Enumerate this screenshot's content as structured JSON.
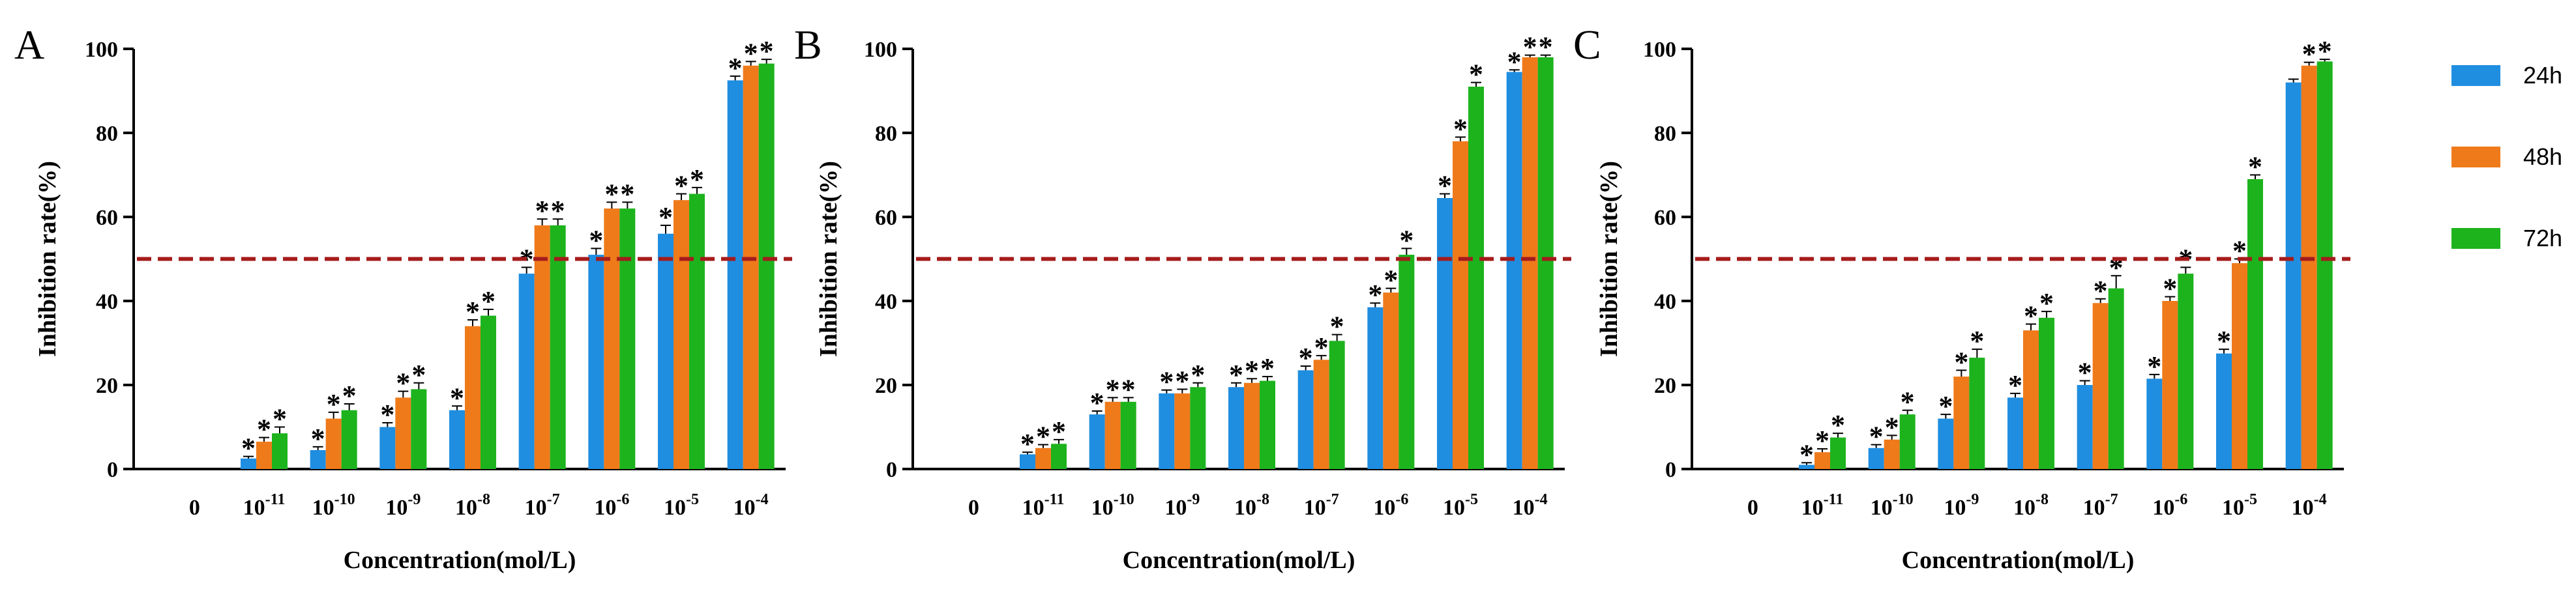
{
  "colors": {
    "24h": "#1f8ee0",
    "48h": "#ef7a1a",
    "72h": "#1db31d",
    "threshold": "#a51c1c",
    "axis": "#000000"
  },
  "legend": [
    {
      "label": "24h",
      "color": "#1f8ee0"
    },
    {
      "label": "48h",
      "color": "#ef7a1a"
    },
    {
      "label": "72h",
      "color": "#1db31d"
    }
  ],
  "chart_data": [
    {
      "type": "bar",
      "panel": "A",
      "xlabel": "Concentration(mol/L)",
      "ylabel": "Inhibition rate(%)",
      "ylim": [
        0,
        100
      ],
      "yticks": [
        "0",
        "20",
        "40",
        "60",
        "80",
        "100"
      ],
      "threshold": 50,
      "categories": [
        {
          "base": "0",
          "exp": ""
        },
        {
          "base": "10",
          "exp": "-11"
        },
        {
          "base": "10",
          "exp": "-10"
        },
        {
          "base": "10",
          "exp": "-9"
        },
        {
          "base": "10",
          "exp": "-8"
        },
        {
          "base": "10",
          "exp": "-7"
        },
        {
          "base": "10",
          "exp": "-6"
        },
        {
          "base": "10",
          "exp": "-5"
        },
        {
          "base": "10",
          "exp": "-4"
        }
      ],
      "series": [
        {
          "name": "24h",
          "values": [
            0,
            2.5,
            4.5,
            10,
            14,
            46.5,
            51,
            56,
            92.5
          ],
          "errors": [
            0,
            0.5,
            0.8,
            1,
            1,
            1.5,
            1.5,
            2,
            1
          ],
          "stars": [
            "",
            "*",
            "*",
            "*",
            "*",
            "*",
            "*",
            "*",
            "*"
          ]
        },
        {
          "name": "48h",
          "values": [
            0,
            6.5,
            12,
            17,
            34,
            58,
            62,
            64,
            96
          ],
          "errors": [
            0,
            1,
            1.5,
            1.5,
            1.5,
            1.5,
            1.5,
            1.5,
            1
          ],
          "stars": [
            "",
            "*",
            "*",
            "*",
            "*",
            "*",
            "*",
            "*",
            "*"
          ]
        },
        {
          "name": "72h",
          "values": [
            0,
            8.5,
            14,
            19,
            36.5,
            58,
            62,
            65.5,
            96.5
          ],
          "errors": [
            0,
            1.5,
            1.5,
            1.5,
            1.5,
            1.5,
            1.5,
            1.5,
            1
          ],
          "stars": [
            "",
            "*",
            "*",
            "*",
            "*",
            "*",
            "*",
            "*",
            "*"
          ]
        }
      ]
    },
    {
      "type": "bar",
      "panel": "B",
      "xlabel": "Concentration(mol/L)",
      "ylabel": "Inhibition rate(%)",
      "ylim": [
        0,
        100
      ],
      "yticks": [
        "0",
        "20",
        "40",
        "60",
        "80",
        "100"
      ],
      "threshold": 50,
      "categories": [
        {
          "base": "0",
          "exp": ""
        },
        {
          "base": "10",
          "exp": "-11"
        },
        {
          "base": "10",
          "exp": "-10"
        },
        {
          "base": "10",
          "exp": "-9"
        },
        {
          "base": "10",
          "exp": "-8"
        },
        {
          "base": "10",
          "exp": "-7"
        },
        {
          "base": "10",
          "exp": "-6"
        },
        {
          "base": "10",
          "exp": "-5"
        },
        {
          "base": "10",
          "exp": "-4"
        }
      ],
      "series": [
        {
          "name": "24h",
          "values": [
            0,
            3.5,
            13,
            18,
            19.5,
            23.5,
            38.5,
            64.5,
            94.5
          ],
          "errors": [
            0,
            0.5,
            0.8,
            0.8,
            1,
            1,
            1,
            1,
            0.5
          ],
          "stars": [
            "",
            "*",
            "*",
            "*",
            "*",
            "*",
            "*",
            "*",
            "*"
          ]
        },
        {
          "name": "48h",
          "values": [
            0,
            5,
            16,
            18,
            20.5,
            26,
            42,
            78,
            98
          ],
          "errors": [
            0,
            0.8,
            1,
            1,
            1,
            1,
            1,
            1,
            0.5
          ],
          "stars": [
            "",
            "*",
            "*",
            "*",
            "*",
            "*",
            "*",
            "*",
            "*"
          ]
        },
        {
          "name": "72h",
          "values": [
            0,
            6,
            16,
            19.5,
            21,
            30.5,
            51,
            91,
            98
          ],
          "errors": [
            0,
            1,
            1,
            1,
            1,
            1.5,
            1.5,
            1,
            0.5
          ],
          "stars": [
            "",
            "*",
            "*",
            "*",
            "*",
            "*",
            "*",
            "*",
            "*"
          ]
        }
      ]
    },
    {
      "type": "bar",
      "panel": "C",
      "xlabel": "Concentration(mol/L)",
      "ylabel": "Inhibition rate(%)",
      "ylim": [
        0,
        100
      ],
      "yticks": [
        "0",
        "20",
        "40",
        "60",
        "80",
        "100"
      ],
      "threshold": 50,
      "categories": [
        {
          "base": "0",
          "exp": ""
        },
        {
          "base": "10",
          "exp": "-11"
        },
        {
          "base": "10",
          "exp": "-10"
        },
        {
          "base": "10",
          "exp": "-9"
        },
        {
          "base": "10",
          "exp": "-8"
        },
        {
          "base": "10",
          "exp": "-7"
        },
        {
          "base": "10",
          "exp": "-6"
        },
        {
          "base": "10",
          "exp": "-5"
        },
        {
          "base": "10",
          "exp": "-4"
        }
      ],
      "series": [
        {
          "name": "24h",
          "values": [
            0,
            1,
            5,
            12,
            17,
            20,
            21.5,
            27.5,
            92
          ],
          "errors": [
            0,
            0.5,
            0.8,
            1,
            1,
            1,
            1,
            1,
            0.8
          ],
          "stars": [
            "",
            "*",
            "*",
            "*",
            "*",
            "*",
            "*",
            "*",
            ""
          ]
        },
        {
          "name": "48h",
          "values": [
            0,
            4,
            7,
            22,
            33,
            39.5,
            40,
            49,
            96
          ],
          "errors": [
            0,
            0.8,
            1,
            1.5,
            1.5,
            1,
            1,
            1,
            0.8
          ],
          "stars": [
            "",
            "*",
            "*",
            "*",
            "*",
            "*",
            "*",
            "*",
            "*"
          ]
        },
        {
          "name": "72h",
          "values": [
            0,
            7.5,
            13,
            26.5,
            36,
            43,
            46.5,
            69,
            97
          ],
          "errors": [
            0,
            1,
            1,
            2,
            1.5,
            3,
            1.5,
            1,
            0.5
          ],
          "stars": [
            "",
            "*",
            "*",
            "*",
            "*",
            "*",
            "*",
            "*",
            "*"
          ]
        }
      ]
    }
  ]
}
